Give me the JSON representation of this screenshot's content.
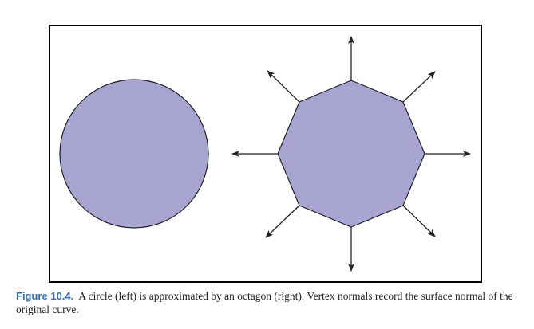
{
  "figure": {
    "label": "Figure 10.4.",
    "caption": "A circle (left) is approximated by an octagon (right). Vertex normals record the surface normal of the original curve.",
    "shape_fill": "#a8a4d2",
    "stroke_color": "#222222"
  },
  "shapes": {
    "left": "circle",
    "right": "octagon",
    "octagon_vertex_count": 8,
    "normal_arrow_count": 8
  }
}
